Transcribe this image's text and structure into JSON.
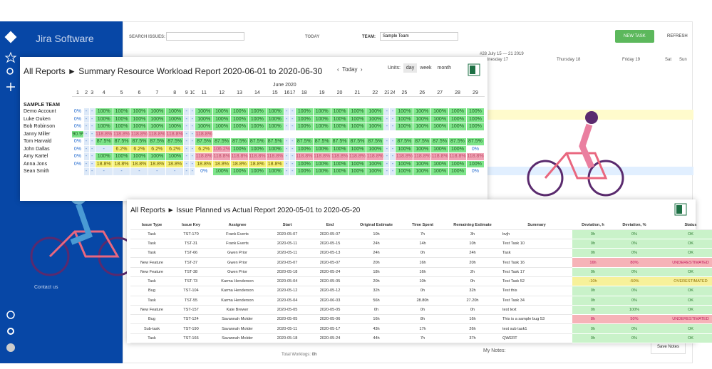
{
  "sidebar": {
    "brand": "Jira Software",
    "contact": "Contact us"
  },
  "app": {
    "search_label": "SEARCH ISSUES:",
    "today": "TODAY",
    "team_label": "TEAM:",
    "team": "Sample Team",
    "new_task": "NEW TASK",
    "refresh": "REFRESH",
    "week": "#28 July 15 — 21 2019",
    "days": [
      "Wednesday 17",
      "Thursday 18",
      "Friday 19",
      "Sat",
      "Sun"
    ],
    "total_worklogs": "Total Worklogs:",
    "total_value": "0h",
    "my_notes": "My Notes:",
    "save_notes": "Save Notes"
  },
  "workload": {
    "breadcrumb": "All Reports",
    "title": "Summary Resource Workload Report 2020-06-01 to 2020-06-30",
    "today": "Today",
    "units_label": "Units:",
    "units": [
      "day",
      "week",
      "month"
    ],
    "month": "June 2020",
    "team": "SAMPLE TEAM",
    "days": [
      1,
      2,
      3,
      4,
      5,
      6,
      7,
      8,
      9,
      10,
      11,
      12,
      13,
      14,
      15,
      16,
      17,
      18,
      19,
      20,
      21,
      22,
      23,
      24,
      25,
      26,
      27,
      28,
      29
    ],
    "rows": [
      {
        "name": "Demo Account",
        "cells": [
          "0%",
          "-",
          "-",
          "100%",
          "100%",
          "100%",
          "100%",
          "100%",
          "-",
          "-",
          "100%",
          "100%",
          "100%",
          "100%",
          "100%",
          "-",
          "-",
          "100%",
          "100%",
          "100%",
          "100%",
          "100%",
          "-",
          "-",
          "100%",
          "100%",
          "100%",
          "100%",
          "100%"
        ]
      },
      {
        "name": "Luke Ouken",
        "cells": [
          "0%",
          "-",
          "-",
          "100%",
          "100%",
          "100%",
          "100%",
          "100%",
          "-",
          "-",
          "100%",
          "100%",
          "100%",
          "100%",
          "100%",
          "-",
          "-",
          "100%",
          "100%",
          "100%",
          "100%",
          "100%",
          "-",
          "-",
          "100%",
          "100%",
          "100%",
          "100%",
          "100%"
        ]
      },
      {
        "name": "Bob Robinson",
        "cells": [
          "0%",
          "-",
          "-",
          "100%",
          "100%",
          "100%",
          "100%",
          "100%",
          "-",
          "-",
          "100%",
          "100%",
          "100%",
          "100%",
          "100%",
          "-",
          "-",
          "100%",
          "100%",
          "100%",
          "100%",
          "100%",
          "-",
          "-",
          "100%",
          "100%",
          "100%",
          "100%",
          "100%"
        ]
      },
      {
        "name": "Janny Miller",
        "cells": [
          "90.9%",
          "-",
          "-",
          "118.8%",
          "118.8%",
          "118.8%",
          "118.8%",
          "118.8%",
          "-",
          "-",
          "118.8%",
          null,
          null,
          null,
          null,
          null,
          null,
          null,
          null,
          null,
          null,
          null,
          null,
          null,
          null,
          null,
          null,
          null,
          null
        ]
      },
      {
        "name": "Tom Harvald",
        "cells": [
          "0%",
          "-",
          "-",
          "87.5%",
          "87.5%",
          "87.5%",
          "87.5%",
          "87.5%",
          "-",
          "-",
          "87.5%",
          "87.5%",
          "87.5%",
          "87.5%",
          "87.5%",
          "-",
          "-",
          "87.5%",
          "87.5%",
          "87.5%",
          "87.5%",
          "87.5%",
          "-",
          "-",
          "87.5%",
          "87.5%",
          "87.5%",
          "87.5%",
          "87.5%"
        ]
      },
      {
        "name": "John Dallas",
        "cells": [
          "0%",
          "-",
          "-",
          "-",
          "6.2%",
          "6.2%",
          "6.2%",
          "6.2%",
          "-",
          "-",
          "6.2%",
          "106.2%",
          "100%",
          "100%",
          "100%",
          "-",
          "-",
          "100%",
          "100%",
          "100%",
          "100%",
          "100%",
          "-",
          "-",
          "100%",
          "100%",
          "100%",
          "100%",
          "0%"
        ]
      },
      {
        "name": "Amy Kartel",
        "cells": [
          "0%",
          "-",
          "-",
          "100%",
          "100%",
          "100%",
          "100%",
          "100%",
          "-",
          "-",
          "118.8%",
          "118.8%",
          "118.8%",
          "118.8%",
          "118.8%",
          "-",
          "-",
          "118.8%",
          "118.8%",
          "118.8%",
          "118.8%",
          "118.8%",
          "-",
          "-",
          "118.8%",
          "118.8%",
          "118.8%",
          "118.8%",
          "118.8%"
        ]
      },
      {
        "name": "Anna Jons",
        "cells": [
          "0%",
          "-",
          "-",
          "18.8%",
          "18.8%",
          "18.8%",
          "18.8%",
          "18.8%",
          "-",
          "-",
          "18.8%",
          "18.8%",
          "18.8%",
          "18.8%",
          "18.8%",
          "-",
          "-",
          "100%",
          "100%",
          "100%",
          "100%",
          "100%",
          "-",
          "-",
          "100%",
          "100%",
          "100%",
          "100%",
          "100%"
        ]
      },
      {
        "name": "Sean Smith",
        "cells": [
          null,
          "-",
          "-",
          "-",
          "-",
          "-",
          "-",
          "-",
          "-",
          "-",
          "0%",
          "100%",
          "100%",
          "100%",
          "100%",
          "-",
          "-",
          "100%",
          "100%",
          "100%",
          "100%",
          "100%",
          "-",
          "-",
          "100%",
          "100%",
          "100%",
          "100%",
          "0%"
        ]
      }
    ]
  },
  "planned": {
    "breadcrumb": "All Reports",
    "title": "Issue Planned vs Actual Report 2020-05-01 to 2020-05-20",
    "columns": [
      "Issue Type",
      "Issue Key",
      "Assignee",
      "Start",
      "End",
      "Original Estimate",
      "Time Spent",
      "Remaining Estimate",
      "Summary",
      "Deviation, h",
      "Deviation, %",
      "Status"
    ],
    "rows": [
      [
        "Task",
        "TST-170",
        "Frank Everts",
        "2020-05-07",
        "2020-05-07",
        "10h",
        "7h",
        "3h",
        "bvjh",
        "0h",
        "0%",
        "OK"
      ],
      [
        "Task",
        "TST-31",
        "Frank Everts",
        "2020-05-11",
        "2020-05-15",
        "24h",
        "14h",
        "10h",
        "Test Task 10",
        "0h",
        "0%",
        "OK"
      ],
      [
        "Task",
        "TST-66",
        "Gwen Prior",
        "2020-05-11",
        "2020-05-13",
        "24h",
        "0h",
        "24h",
        "Task",
        "0h",
        "0%",
        "OK"
      ],
      [
        "New Feature",
        "TST-37",
        "Gwen Prior",
        "2020-05-07",
        "2020-05-07",
        "20h",
        "16h",
        "20h",
        "Test Task 16",
        "16h",
        "80%",
        "UNDERESTIMATED"
      ],
      [
        "New Feature",
        "TST-38",
        "Gwen Prior",
        "2020-05-18",
        "2020-05-24",
        "18h",
        "16h",
        "2h",
        "Test Task 17",
        "0h",
        "0%",
        "OK"
      ],
      [
        "Task",
        "TST-73",
        "Karma Henderson",
        "2020-05-04",
        "2020-05-05",
        "20h",
        "10h",
        "0h",
        "Test Task 52",
        "-10h",
        "-50%",
        "OVERESTIMATED"
      ],
      [
        "Bug",
        "TST-104",
        "Karma Henderson",
        "2020-05-12",
        "2020-05-12",
        "32h",
        "0h",
        "32h",
        "Test this",
        "0h",
        "0%",
        "OK"
      ],
      [
        "Task",
        "TST-55",
        "Karma Henderson",
        "2020-05-04",
        "2020-06-03",
        "56h",
        "28.80h",
        "27.20h",
        "Test Task 34",
        "0h",
        "0%",
        "OK"
      ],
      [
        "New Feature",
        "TST-157",
        "Kate Brewer",
        "2020-05-05",
        "2020-05-05",
        "0h",
        "0h",
        "0h",
        "test text",
        "0h",
        "100%",
        "OK"
      ],
      [
        "Bug",
        "TST-124",
        "Savannah Molder",
        "2020-05-05",
        "2020-05-06",
        "16h",
        "8h",
        "16h",
        "This is a sample bug 53",
        "8h",
        "50%",
        "UNDERESTIMATED"
      ],
      [
        "Sub-task",
        "TST-190",
        "Savannah Molder",
        "2020-05-11",
        "2020-05-17",
        "43h",
        "17h",
        "26h",
        "test sub task1",
        "0h",
        "0%",
        "OK"
      ],
      [
        "Task",
        "TST-166",
        "Savannah Molder",
        "2020-05-18",
        "2020-05-24",
        "44h",
        "7h",
        "37h",
        "QWERT",
        "0h",
        "0%",
        "OK"
      ]
    ]
  }
}
